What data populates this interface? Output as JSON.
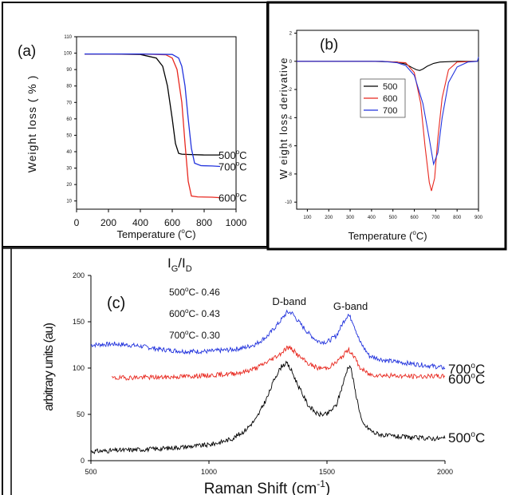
{
  "chart_data": [
    {
      "panel": "(a)",
      "type": "line",
      "xlabel": "Temperature (",
      "xlabel_unit": "C)",
      "ylabel": "Weight loss ( % )",
      "xlim": [
        0,
        1000
      ],
      "ylim": [
        5,
        110
      ],
      "xticks": [
        0,
        200,
        400,
        600,
        800,
        1000
      ],
      "yticks": [
        10,
        20,
        30,
        40,
        50,
        60,
        70,
        80,
        90,
        100,
        110
      ],
      "series": [
        {
          "name": "500 °C",
          "color": "#000000",
          "x": [
            50,
            200,
            400,
            500,
            540,
            570,
            600,
            620,
            640,
            660,
            700,
            800,
            900
          ],
          "y": [
            99.5,
            99.5,
            99.2,
            97,
            92,
            80,
            60,
            45,
            39,
            38.5,
            38.3,
            38,
            38
          ]
        },
        {
          "name": "600 °C",
          "color": "#e8281f",
          "x": [
            50,
            200,
            400,
            560,
            600,
            630,
            660,
            680,
            700,
            720,
            760,
            850,
            900
          ],
          "y": [
            99.5,
            99.5,
            99.5,
            99,
            97,
            90,
            70,
            45,
            22,
            13,
            12.5,
            12.3,
            12
          ]
        },
        {
          "name": "700 °C",
          "color": "#2233dd",
          "x": [
            50,
            200,
            400,
            600,
            640,
            660,
            680,
            700,
            720,
            740,
            780,
            850,
            900
          ],
          "y": [
            99.5,
            99.5,
            99.5,
            99.2,
            97,
            92,
            80,
            60,
            42,
            33,
            31.5,
            31.3,
            31
          ]
        }
      ],
      "annotations": [
        {
          "text": "500",
          "sup": "o",
          "after": "C",
          "series": "500 °C"
        },
        {
          "text": "700",
          "sup": "o",
          "after": "C",
          "series": "700 °C"
        },
        {
          "text": "600",
          "sup": "o",
          "after": "C",
          "series": "600 °C"
        }
      ]
    },
    {
      "panel": "(b)",
      "type": "line",
      "xlabel": "Temperature (",
      "xlabel_unit": "C)",
      "ylabel": "W eight loss derivative",
      "xlim": [
        50,
        900
      ],
      "ylim": [
        -10.5,
        2.2
      ],
      "xticks": [
        100,
        200,
        300,
        400,
        500,
        600,
        700,
        800,
        900
      ],
      "yticks": [
        2,
        0,
        -2,
        -4,
        -6,
        -8,
        -10
      ],
      "legend": [
        "500",
        "600",
        "700"
      ],
      "legend_position": "upper-left",
      "series": [
        {
          "name": "500",
          "color": "#000000",
          "x": [
            50,
            400,
            520,
            560,
            590,
            610,
            625,
            640,
            660,
            690,
            720,
            800,
            895
          ],
          "y": [
            0,
            0,
            -0.05,
            -0.2,
            -0.45,
            -0.6,
            -0.65,
            -0.55,
            -0.35,
            -0.15,
            -0.05,
            0,
            0
          ]
        },
        {
          "name": "600",
          "color": "#e8281f",
          "x": [
            50,
            450,
            560,
            600,
            630,
            650,
            670,
            680,
            695,
            710,
            730,
            760,
            800,
            895
          ],
          "y": [
            0,
            0,
            -0.1,
            -0.8,
            -3,
            -6,
            -8.6,
            -9.2,
            -8.3,
            -5.5,
            -2.6,
            -0.6,
            -0.05,
            0
          ]
        },
        {
          "name": "700",
          "color": "#2233dd",
          "x": [
            50,
            450,
            520,
            560,
            600,
            640,
            670,
            690,
            710,
            730,
            760,
            800,
            850,
            895,
            900
          ],
          "y": [
            0,
            0,
            -0.1,
            -0.3,
            -1,
            -3,
            -5.5,
            -7.3,
            -6.5,
            -4,
            -1.5,
            -0.4,
            -0.05,
            0,
            0.3
          ]
        }
      ]
    },
    {
      "panel": "(c)",
      "type": "line",
      "xlabel": "Raman Shift (cm",
      "xlabel_sup": "-1",
      "xlabel_after": ")",
      "ylabel": "arbitrary units (au)",
      "xlim": [
        500,
        2000
      ],
      "ylim": [
        0,
        200
      ],
      "xticks": [
        500,
        1000,
        1500,
        2000
      ],
      "yticks": [
        0,
        50,
        100,
        150,
        200
      ],
      "ratio_label": "I",
      "ratio_sub_g": "G",
      "ratio_slash": "/I",
      "ratio_sub_d": "D",
      "ratios": [
        {
          "temp": "500",
          "sup": "o",
          "after": "C- 0.46"
        },
        {
          "temp": "600",
          "sup": "o",
          "after": "C- 0.43"
        },
        {
          "temp": "700",
          "sup": "o",
          "after": "C- 0.30"
        }
      ],
      "band_labels": [
        {
          "text": "D-band",
          "x": 1340,
          "y": 168
        },
        {
          "text": "G-band",
          "x": 1600,
          "y": 163
        }
      ],
      "series": [
        {
          "name": "700",
          "color": "#2233dd",
          "x": [
            500,
            600,
            700,
            800,
            900,
            1000,
            1100,
            1150,
            1200,
            1250,
            1300,
            1330,
            1350,
            1380,
            1420,
            1460,
            1500,
            1540,
            1570,
            1590,
            1610,
            1640,
            1680,
            1750,
            1850,
            1950,
            2000
          ],
          "y": [
            125,
            126,
            124,
            120,
            118,
            118,
            120,
            122,
            126,
            135,
            150,
            160,
            160,
            150,
            138,
            129,
            128,
            135,
            150,
            158,
            150,
            128,
            113,
            108,
            105,
            102,
            100
          ]
        },
        {
          "name": "600",
          "color": "#e8281f",
          "x": [
            590,
            700,
            800,
            900,
            1000,
            1100,
            1150,
            1200,
            1250,
            1300,
            1330,
            1350,
            1380,
            1420,
            1460,
            1500,
            1540,
            1570,
            1590,
            1610,
            1640,
            1680,
            1750,
            1850,
            1950,
            2000
          ],
          "y": [
            89,
            90,
            90,
            91,
            92,
            94,
            96,
            100,
            107,
            115,
            122,
            121,
            113,
            105,
            100,
            100,
            106,
            114,
            120,
            115,
            100,
            93,
            92,
            91,
            91,
            91
          ]
        },
        {
          "name": "500",
          "color": "#000000",
          "x": [
            500,
            600,
            700,
            800,
            900,
            1000,
            1050,
            1100,
            1150,
            1200,
            1250,
            1280,
            1310,
            1330,
            1350,
            1380,
            1420,
            1460,
            1500,
            1540,
            1570,
            1590,
            1600,
            1620,
            1650,
            1700,
            1750,
            1850,
            1950,
            2000
          ],
          "y": [
            10,
            11,
            12,
            13,
            15,
            17,
            20,
            24,
            32,
            45,
            70,
            90,
            103,
            105,
            97,
            80,
            60,
            50,
            50,
            60,
            85,
            102,
            102,
            75,
            40,
            30,
            27,
            25,
            24,
            24
          ]
        }
      ],
      "curve_labels": [
        {
          "text": "700",
          "sup": "o",
          "after": "C",
          "series": "700"
        },
        {
          "text": "600",
          "sup": "o",
          "after": "C",
          "series": "600"
        },
        {
          "text": "500",
          "sup": "o",
          "after": "C",
          "series": "500"
        }
      ]
    }
  ]
}
